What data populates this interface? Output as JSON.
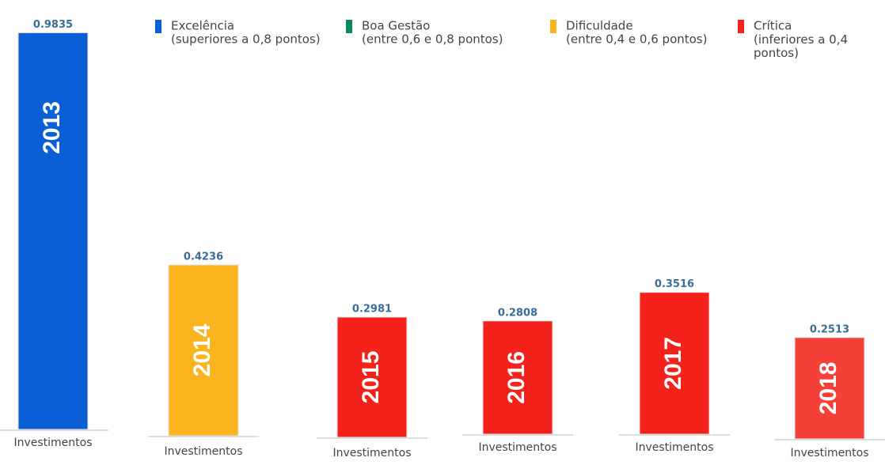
{
  "chart_data": {
    "type": "bar",
    "categories": [
      "2013",
      "2014",
      "2015",
      "2016",
      "2017",
      "2018"
    ],
    "values": [
      0.9835,
      0.4236,
      0.2981,
      0.2808,
      0.3516,
      0.2513
    ],
    "colors": [
      "#0a5fd6",
      "#fbb41e",
      "#f5211b",
      "#f5211b",
      "#f5211b",
      "#f5403a"
    ],
    "xlabel": "Investimentos",
    "ylim": [
      0,
      1
    ],
    "legend": [
      {
        "label": "Excelência",
        "detail": "(superiores a 0,8 pontos)",
        "color": "#0a5fd6"
      },
      {
        "label": "Boa Gestão",
        "detail": "(entre 0,6 e 0,8 pontos)",
        "color": "#0a8a5a"
      },
      {
        "label": "Dificuldade",
        "detail": "(entre 0,4 e 0,6 pontos)",
        "color": "#fbb41e"
      },
      {
        "label": "Crítica",
        "detail": "(inferiores a 0,4 pontos)",
        "color": "#f5211b"
      }
    ]
  }
}
